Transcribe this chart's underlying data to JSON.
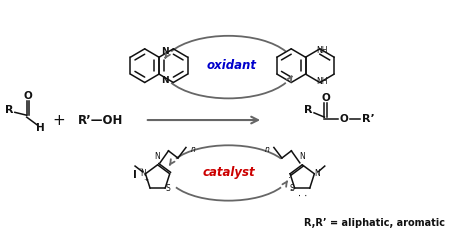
{
  "bg_color": "#ffffff",
  "fig_width": 4.74,
  "fig_height": 2.42,
  "dpi": 100,
  "oxidant_label": "oxidant",
  "oxidant_color": "#0000cc",
  "catalyst_label": "catalyst",
  "catalyst_color": "#cc0000",
  "rr_label": "R,R’ = aliphatic, aromatic",
  "arrow_color": "#666666",
  "bond_color": "#111111",
  "text_color": "#111111"
}
